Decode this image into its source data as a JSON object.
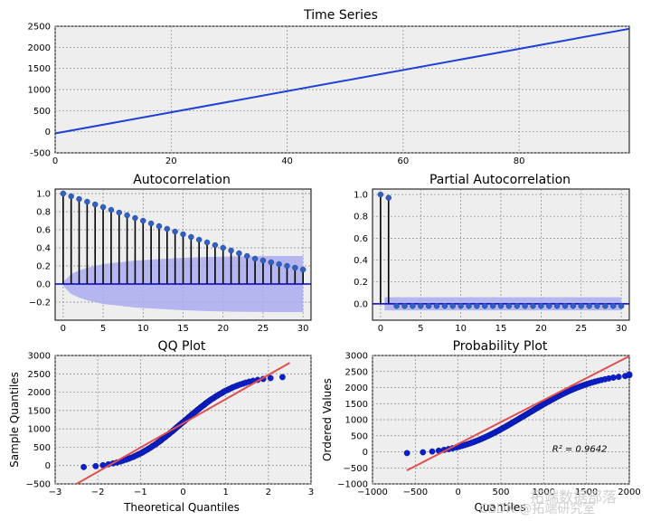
{
  "chart_data": [
    {
      "id": "ts",
      "type": "line",
      "title": "Time Series",
      "xlabel": "",
      "ylabel": "",
      "xlim": [
        0,
        99
      ],
      "ylim": [
        -500,
        2500
      ],
      "xticks": [
        0,
        20,
        40,
        60,
        80
      ],
      "yticks": [
        -500,
        0,
        500,
        1000,
        1500,
        2000,
        2500
      ],
      "grid": true,
      "color": "#1f3fd6",
      "series": [
        {
          "x": [
            0,
            99
          ],
          "y": [
            -40,
            2440
          ]
        }
      ]
    },
    {
      "id": "acf",
      "type": "stem",
      "title": "Autocorrelation",
      "xlabel": "",
      "ylabel": "",
      "xlim": [
        -1,
        31
      ],
      "ylim": [
        -0.4,
        1.05
      ],
      "xticks": [
        0,
        5,
        10,
        15,
        20,
        25,
        30
      ],
      "yticks": [
        -0.2,
        0.0,
        0.2,
        0.4,
        0.6,
        0.8,
        1.0
      ],
      "ytick_labels": [
        "−0.2",
        "0.0",
        "0.2",
        "0.4",
        "0.6",
        "0.8",
        "1.0"
      ],
      "grid": true,
      "marker_color": "#3060c0",
      "band_color": "#aaaaee",
      "lags": [
        0,
        1,
        2,
        3,
        4,
        5,
        6,
        7,
        8,
        9,
        10,
        11,
        12,
        13,
        14,
        15,
        16,
        17,
        18,
        19,
        20,
        21,
        22,
        23,
        24,
        25,
        26,
        27,
        28,
        29,
        30
      ],
      "values": [
        1.0,
        0.97,
        0.94,
        0.91,
        0.88,
        0.85,
        0.82,
        0.79,
        0.76,
        0.73,
        0.7,
        0.67,
        0.64,
        0.61,
        0.58,
        0.55,
        0.52,
        0.49,
        0.46,
        0.43,
        0.4,
        0.37,
        0.34,
        0.31,
        0.28,
        0.26,
        0.24,
        0.22,
        0.2,
        0.18,
        0.16
      ],
      "confidence_band": [
        0.02,
        0.11,
        0.15,
        0.18,
        0.2,
        0.22,
        0.23,
        0.24,
        0.25,
        0.26,
        0.265,
        0.27,
        0.275,
        0.28,
        0.285,
        0.29,
        0.293,
        0.296,
        0.299,
        0.301,
        0.303,
        0.305,
        0.306,
        0.307,
        0.308,
        0.309,
        0.31,
        0.31,
        0.31,
        0.31,
        0.31
      ]
    },
    {
      "id": "pacf",
      "type": "stem",
      "title": "Partial Autocorrelation",
      "xlabel": "",
      "ylabel": "",
      "xlim": [
        -1,
        31
      ],
      "ylim": [
        -0.15,
        1.05
      ],
      "xticks": [
        0,
        5,
        10,
        15,
        20,
        25,
        30
      ],
      "yticks": [
        0.0,
        0.2,
        0.4,
        0.6,
        0.8,
        1.0
      ],
      "ytick_labels": [
        "0.0",
        "0.2",
        "0.4",
        "0.6",
        "0.8",
        "1.0"
      ],
      "grid": true,
      "marker_color": "#3060c0",
      "band_color": "#aaaaee",
      "band_halfwidth": 0.06,
      "lags": [
        0,
        1,
        2,
        3,
        4,
        5,
        6,
        7,
        8,
        9,
        10,
        11,
        12,
        13,
        14,
        15,
        16,
        17,
        18,
        19,
        20,
        21,
        22,
        23,
        24,
        25,
        26,
        27,
        28,
        29,
        30
      ],
      "values": [
        1.0,
        0.97,
        -0.02,
        -0.02,
        -0.02,
        -0.02,
        -0.02,
        -0.02,
        -0.02,
        -0.02,
        -0.02,
        -0.02,
        -0.02,
        -0.02,
        -0.02,
        -0.02,
        -0.02,
        -0.02,
        -0.02,
        -0.02,
        -0.02,
        -0.02,
        -0.02,
        -0.02,
        -0.02,
        -0.02,
        -0.02,
        -0.02,
        -0.02,
        -0.02,
        -0.02
      ]
    },
    {
      "id": "qq",
      "type": "scatter",
      "title": "QQ Plot",
      "xlabel": "Theoretical Quantiles",
      "ylabel": "Sample Quantiles",
      "xlim": [
        -3,
        3
      ],
      "ylim": [
        -500,
        3000
      ],
      "xticks": [
        -3,
        -2,
        -1,
        0,
        1,
        2,
        3
      ],
      "xtick_labels": [
        "−3",
        "−2",
        "−1",
        "0",
        "1",
        "2",
        "3"
      ],
      "yticks": [
        -500,
        0,
        500,
        1000,
        1500,
        2000,
        2500,
        3000
      ],
      "ytick_labels": [
        "−500",
        "0",
        "500",
        "1000",
        "1500",
        "2000",
        "2500",
        "3000"
      ],
      "grid": true,
      "point_color": "#0a1ecc",
      "line_color": "#e05050",
      "reference_line": {
        "x": [
          -2.5,
          2.5
        ],
        "y": [
          -500,
          2800
        ]
      },
      "points": {
        "x": [
          -2.33,
          -2.05,
          -1.88,
          -1.75,
          -1.64,
          -1.55,
          -1.47,
          -1.41,
          -1.34,
          -1.28,
          -1.23,
          -1.17,
          -1.13,
          -1.08,
          -1.04,
          -0.99,
          -0.95,
          -0.92,
          -0.88,
          -0.84,
          -0.81,
          -0.77,
          -0.74,
          -0.71,
          -0.67,
          -0.64,
          -0.61,
          -0.58,
          -0.55,
          -0.52,
          -0.5,
          -0.47,
          -0.44,
          -0.41,
          -0.39,
          -0.36,
          -0.33,
          -0.31,
          -0.28,
          -0.25,
          -0.23,
          -0.2,
          -0.18,
          -0.15,
          -0.13,
          -0.1,
          -0.08,
          -0.05,
          -0.03,
          0.0,
          0.03,
          0.05,
          0.08,
          0.1,
          0.13,
          0.15,
          0.18,
          0.2,
          0.23,
          0.25,
          0.28,
          0.31,
          0.33,
          0.36,
          0.39,
          0.41,
          0.44,
          0.47,
          0.5,
          0.52,
          0.55,
          0.58,
          0.61,
          0.64,
          0.67,
          0.71,
          0.74,
          0.77,
          0.81,
          0.84,
          0.88,
          0.92,
          0.95,
          0.99,
          1.04,
          1.08,
          1.13,
          1.17,
          1.23,
          1.28,
          1.34,
          1.41,
          1.47,
          1.55,
          1.64,
          1.75,
          1.88,
          2.05,
          2.33
        ],
        "y": [
          -40,
          -15,
          10,
          35,
          60,
          85,
          110,
          135,
          160,
          185,
          210,
          235,
          260,
          285,
          310,
          335,
          360,
          385,
          410,
          435,
          460,
          485,
          510,
          535,
          560,
          585,
          610,
          635,
          660,
          685,
          710,
          735,
          760,
          785,
          810,
          835,
          860,
          885,
          910,
          935,
          960,
          985,
          1010,
          1035,
          1060,
          1085,
          1110,
          1135,
          1160,
          1185,
          1210,
          1235,
          1260,
          1285,
          1310,
          1335,
          1360,
          1385,
          1410,
          1435,
          1460,
          1485,
          1510,
          1535,
          1560,
          1585,
          1610,
          1635,
          1660,
          1685,
          1710,
          1735,
          1760,
          1785,
          1810,
          1835,
          1860,
          1885,
          1910,
          1935,
          1960,
          1985,
          2010,
          2035,
          2060,
          2085,
          2110,
          2135,
          2160,
          2185,
          2210,
          2235,
          2260,
          2285,
          2310,
          2335,
          2360,
          2385,
          2410
        ]
      }
    },
    {
      "id": "prob",
      "type": "scatter",
      "title": "Probability Plot",
      "xlabel": "Quantiles",
      "ylabel": "Ordered Values",
      "xlim": [
        -1000,
        2000
      ],
      "ylim": [
        -1000,
        3000
      ],
      "xticks": [
        -1000,
        -500,
        0,
        500,
        1000,
        1500,
        2000
      ],
      "xtick_labels": [
        "−1000",
        "−500",
        "0",
        "500",
        "1000",
        "1500",
        "2000"
      ],
      "yticks": [
        -1000,
        -500,
        0,
        500,
        1000,
        1500,
        2000,
        2500,
        3000
      ],
      "ytick_labels": [
        "−1000",
        "−500",
        "0",
        "500",
        "1000",
        "1500",
        "2000",
        "2500",
        "3000"
      ],
      "grid": true,
      "point_color": "#0a1ecc",
      "line_color": "#e05050",
      "reference_line": {
        "x": [
          -600,
          2000
        ],
        "y": [
          -580,
          2980
        ]
      },
      "annotation": "R² = 0.9642",
      "annotation_xy": [
        1100,
        0
      ],
      "points": {
        "x": [
          -597,
          -411,
          -303,
          -226,
          -164,
          -111,
          -65,
          -25,
          12,
          46,
          77,
          107,
          135,
          162,
          187,
          211,
          235,
          257,
          279,
          300,
          321,
          341,
          361,
          380,
          399,
          417,
          435,
          453,
          471,
          488,
          505,
          522,
          539,
          556,
          572,
          589,
          605,
          621,
          637,
          653,
          669,
          685,
          701,
          716,
          732,
          748,
          764,
          779,
          795,
          811,
          826,
          842,
          858,
          874,
          889,
          905,
          921,
          937,
          953,
          969,
          985,
          1002,
          1018,
          1035,
          1052,
          1068,
          1085,
          1102,
          1120,
          1137,
          1155,
          1173,
          1191,
          1210,
          1229,
          1249,
          1269,
          1289,
          1310,
          1332,
          1354,
          1377,
          1401,
          1426,
          1451,
          1478,
          1506,
          1535,
          1566,
          1599,
          1635,
          1673,
          1715,
          1761,
          1814,
          1876,
          1952,
          2000,
          2000
        ],
        "y": [
          -40,
          -15,
          10,
          35,
          60,
          85,
          110,
          135,
          160,
          185,
          210,
          235,
          260,
          285,
          310,
          335,
          360,
          385,
          410,
          435,
          460,
          485,
          510,
          535,
          560,
          585,
          610,
          635,
          660,
          685,
          710,
          735,
          760,
          785,
          810,
          835,
          860,
          885,
          910,
          935,
          960,
          985,
          1010,
          1035,
          1060,
          1085,
          1110,
          1135,
          1160,
          1185,
          1210,
          1235,
          1260,
          1285,
          1310,
          1335,
          1360,
          1385,
          1410,
          1435,
          1460,
          1485,
          1510,
          1535,
          1560,
          1585,
          1610,
          1635,
          1660,
          1685,
          1710,
          1735,
          1760,
          1785,
          1810,
          1835,
          1860,
          1885,
          1910,
          1935,
          1960,
          1985,
          2010,
          2035,
          2060,
          2085,
          2110,
          2135,
          2160,
          2185,
          2210,
          2235,
          2260,
          2285,
          2310,
          2335,
          2360,
          2385,
          2410
        ]
      }
    }
  ],
  "watermark": {
    "text": "拓端数据部落",
    "subtext": "CSDN @拓端研究室"
  }
}
